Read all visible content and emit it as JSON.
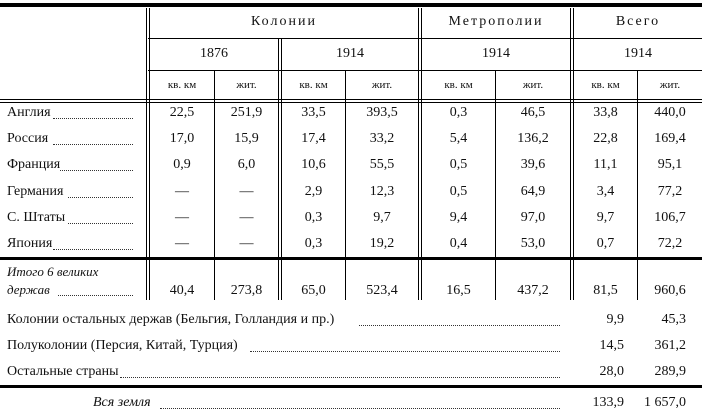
{
  "header": {
    "groups": [
      "Колонии",
      "Метрополии",
      "Всего"
    ],
    "years": [
      "1876",
      "1914",
      "1914",
      "1914"
    ],
    "units": [
      "кв. км",
      "жит.",
      "кв. км",
      "жит.",
      "кв. км",
      "жит.",
      "кв. км",
      "жит."
    ]
  },
  "rows": [
    {
      "label": "Англия",
      "values": [
        "22,5",
        "251,9",
        "33,5",
        "393,5",
        "0,3",
        "46,5",
        "33,8",
        "440,0"
      ]
    },
    {
      "label": "Россия",
      "values": [
        "17,0",
        "15,9",
        "17,4",
        "33,2",
        "5,4",
        "136,2",
        "22,8",
        "169,4"
      ]
    },
    {
      "label": "Франция",
      "values": [
        "0,9",
        "6,0",
        "10,6",
        "55,5",
        "0,5",
        "39,6",
        "11,1",
        "95,1"
      ]
    },
    {
      "label": "Германия",
      "values": [
        "—",
        "—",
        "2,9",
        "12,3",
        "0,5",
        "64,9",
        "3,4",
        "77,2"
      ]
    },
    {
      "label": "С. Штаты",
      "values": [
        "—",
        "—",
        "0,3",
        "9,7",
        "9,4",
        "97,0",
        "9,7",
        "106,7"
      ]
    },
    {
      "label": "Япония",
      "values": [
        "—",
        "—",
        "0,3",
        "19,2",
        "0,4",
        "53,0",
        "0,7",
        "72,2"
      ]
    }
  ],
  "total6": {
    "label_line1": "Итого 6 великих",
    "label_line2": "держав",
    "values": [
      "40,4",
      "273,8",
      "65,0",
      "523,4",
      "16,5",
      "437,2",
      "81,5",
      "960,6"
    ]
  },
  "other_rows": [
    {
      "label": "Колонии остальных держав (Бельгия, Голландия и пр.)",
      "values": [
        "9,9",
        "45,3"
      ]
    },
    {
      "label": "Полуколонии (Персия, Китай, Турция)",
      "values": [
        "14,5",
        "361,2"
      ]
    },
    {
      "label": "Остальные страны",
      "values": [
        "28,0",
        "289,9"
      ]
    }
  ],
  "world": {
    "label": "Вся земля",
    "values": [
      "133,9",
      "1 657,0"
    ]
  }
}
